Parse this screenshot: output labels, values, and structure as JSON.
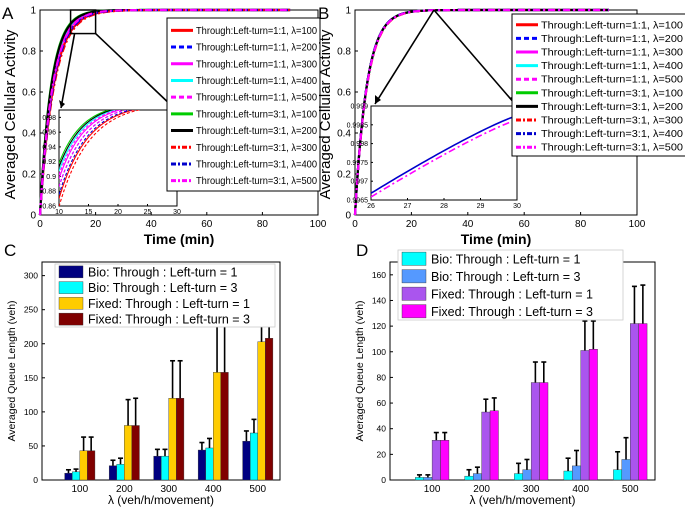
{
  "figure": {
    "legend_lines": [
      {
        "label": "Through:Left-turn=1:1, λ=100",
        "color": "#ff0000",
        "dash": "solid"
      },
      {
        "label": "Through:Left-turn=1:1, λ=200",
        "color": "#0000ff",
        "dash": "dash"
      },
      {
        "label": "Through:Left-turn=1:1, λ=300",
        "color": "#ff00ff",
        "dash": "solid"
      },
      {
        "label": "Through:Left-turn=1:1, λ=400",
        "color": "#00ffff",
        "dash": "solid"
      },
      {
        "label": "Through:Left-turn=1:1, λ=500",
        "color": "#ff00ff",
        "dash": "dash"
      },
      {
        "label": "Through:Left-turn=3:1, λ=100",
        "color": "#00cc00",
        "dash": "solid"
      },
      {
        "label": "Through:Left-turn=3:1, λ=200",
        "color": "#000000",
        "dash": "solid"
      },
      {
        "label": "Through:Left-turn=3:1, λ=300",
        "color": "#ff0000",
        "dash": "dashdot"
      },
      {
        "label": "Through:Left-turn=3:1, λ=400",
        "color": "#0000cc",
        "dash": "dashdot"
      },
      {
        "label": "Through:Left-turn=3:1, λ=500",
        "color": "#ff00ff",
        "dash": "dashdot"
      }
    ]
  },
  "chart_data": [
    {
      "panel": "A",
      "type": "line",
      "xlabel": "Time (min)",
      "ylabel": "Averaged Cellular Activity",
      "xlim": [
        0,
        100
      ],
      "ylim": [
        0,
        1
      ],
      "xticks": [
        0,
        20,
        40,
        60,
        80,
        100
      ],
      "yticks": [
        0,
        0.2,
        0.4,
        0.6,
        0.8,
        1
      ],
      "x_end": 90,
      "series": [
        {
          "name": "Through:Left-turn=1:1, λ=100",
          "tau": 4.9
        },
        {
          "name": "Through:Left-turn=1:1, λ=200",
          "tau": 4.6
        },
        {
          "name": "Through:Left-turn=1:1, λ=300",
          "tau": 4.4
        },
        {
          "name": "Through:Left-turn=1:1, λ=400",
          "tau": 4.2
        },
        {
          "name": "Through:Left-turn=1:1, λ=500",
          "tau": 4.3
        },
        {
          "name": "Through:Left-turn=3:1, λ=100",
          "tau": 4.0
        },
        {
          "name": "Through:Left-turn=3:1, λ=200",
          "tau": 4.1
        },
        {
          "name": "Through:Left-turn=3:1, λ=300",
          "tau": 5.1
        },
        {
          "name": "Through:Left-turn=3:1, λ=400",
          "tau": 4.8
        },
        {
          "name": "Through:Left-turn=3:1, λ=500",
          "tau": 4.6
        }
      ],
      "inset": {
        "xlim": [
          10,
          30
        ],
        "ylim": [
          0.86,
          0.99
        ],
        "xticks": [
          10,
          15,
          20,
          25,
          30
        ],
        "yticks": [
          0.86,
          0.88,
          0.9,
          0.92,
          0.94,
          0.96,
          0.98
        ]
      }
    },
    {
      "panel": "B",
      "type": "line",
      "xlabel": "Time (min)",
      "ylabel": "Averaged Cellular Activity",
      "xlim": [
        0,
        100
      ],
      "ylim": [
        0,
        1
      ],
      "xticks": [
        0,
        20,
        40,
        60,
        80,
        100
      ],
      "yticks": [
        0,
        0.2,
        0.4,
        0.6,
        0.8,
        1
      ],
      "x_end": 90,
      "series": [
        {
          "name": "Through:Left-turn=1:1, λ=100",
          "tau": 4.2
        },
        {
          "name": "Through:Left-turn=1:1, λ=200",
          "tau": 4.2
        },
        {
          "name": "Through:Left-turn=1:1, λ=300",
          "tau": 4.2
        },
        {
          "name": "Through:Left-turn=1:1, λ=400",
          "tau": 4.2
        },
        {
          "name": "Through:Left-turn=1:1, λ=500",
          "tau": 4.2
        },
        {
          "name": "Through:Left-turn=3:1, λ=100",
          "tau": 4.2
        },
        {
          "name": "Through:Left-turn=3:1, λ=200",
          "tau": 4.2
        },
        {
          "name": "Through:Left-turn=3:1, λ=300",
          "tau": 4.3
        },
        {
          "name": "Through:Left-turn=3:1, λ=400",
          "tau": 4.2
        },
        {
          "name": "Through:Left-turn=3:1, λ=500",
          "tau": 4.25
        }
      ],
      "inset": {
        "xlim": [
          26,
          30
        ],
        "ylim": [
          0.9965,
          0.999
        ],
        "xticks": [
          26,
          27,
          28,
          29,
          30
        ],
        "yticks": [
          0.9965,
          0.997,
          0.9975,
          0.998,
          0.9985,
          0.999
        ],
        "ytick_labels": [
          "0.9965",
          "0.997",
          "0.9975",
          "0.998",
          "0.9985",
          "0.999"
        ],
        "series": [
          {
            "name": "upper curves",
            "color": "#0000cc",
            "dash": "solid",
            "y_start": 0.99668,
            "y_end": 0.99874
          },
          {
            "name": "lower curve",
            "color": "#ff00ff",
            "dash": "dashdot",
            "y_start": 0.99658,
            "y_end": 0.99863
          }
        ]
      }
    },
    {
      "panel": "C",
      "type": "bar",
      "xlabel": "λ (veh/h/movement)",
      "ylabel": "Averaged Queue Length (veh)",
      "ylim": [
        0,
        320
      ],
      "yticks": [
        0,
        50,
        100,
        150,
        200,
        250,
        300
      ],
      "categories": [
        "100",
        "200",
        "300",
        "400",
        "500"
      ],
      "series": [
        {
          "name": "Bio: Through : Left-turn = 1",
          "color": "#000080",
          "values": [
            10,
            21,
            35,
            44,
            57
          ],
          "errors": [
            5,
            8,
            10,
            11,
            15
          ]
        },
        {
          "name": "Bio: Through : Left-turn = 3",
          "color": "#00ffff",
          "values": [
            12,
            23,
            35,
            47,
            69
          ],
          "errors": [
            4,
            9,
            10,
            14,
            20
          ]
        },
        {
          "name": "Fixed: Through : Left-turn = 1",
          "color": "#ffcc00",
          "values": [
            43,
            80,
            120,
            158,
            203
          ],
          "errors": [
            20,
            38,
            55,
            75,
            87
          ]
        },
        {
          "name": "Fixed: Through : Left-turn = 3",
          "color": "#800000",
          "values": [
            43,
            80,
            120,
            158,
            208
          ],
          "errors": [
            20,
            40,
            55,
            75,
            80
          ]
        }
      ]
    },
    {
      "panel": "D",
      "type": "bar",
      "xlabel": "λ (veh/h/movement)",
      "ylabel": "Averaged Queue Length (veh)",
      "ylim": [
        0,
        170
      ],
      "yticks": [
        0,
        20,
        40,
        60,
        80,
        100,
        120,
        140,
        160
      ],
      "categories": [
        "100",
        "200",
        "300",
        "400",
        "500"
      ],
      "series": [
        {
          "name": "Bio: Through : Left-turn = 1",
          "color": "#00ffff",
          "values": [
            2,
            3,
            5,
            7,
            8
          ],
          "errors": [
            2,
            5,
            8,
            10,
            14
          ]
        },
        {
          "name": "Bio: Through : Left-turn = 3",
          "color": "#5599ff",
          "values": [
            2,
            5,
            8,
            11,
            16
          ],
          "errors": [
            2,
            5,
            8,
            12,
            17
          ]
        },
        {
          "name": "Fixed: Through : Left-turn = 1",
          "color": "#aa55ee",
          "values": [
            31,
            53,
            76,
            101,
            122
          ],
          "errors": [
            6,
            10,
            16,
            23,
            29
          ]
        },
        {
          "name": "Fixed: Through : Left-turn = 3",
          "color": "#ff00ff",
          "values": [
            31,
            54,
            76,
            102,
            122
          ],
          "errors": [
            6,
            10,
            16,
            22,
            30
          ]
        }
      ]
    }
  ],
  "panel_labels": [
    "A",
    "B",
    "C",
    "D"
  ]
}
